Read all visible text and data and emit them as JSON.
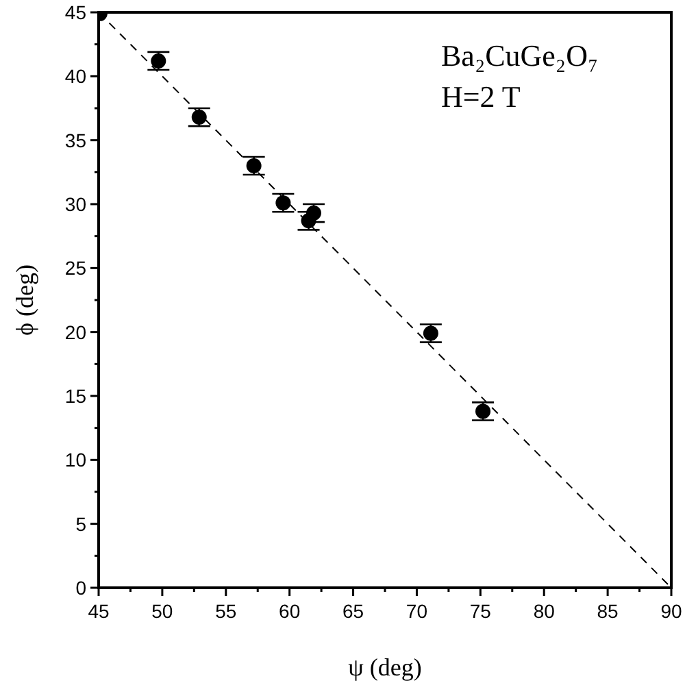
{
  "chart_data": {
    "type": "scatter",
    "xlabel": "ψ (deg)",
    "ylabel": "ϕ (deg)",
    "annotations": [
      "Ba₂CuGe₂O₇",
      "H=2 T"
    ],
    "xlim": [
      45,
      90
    ],
    "ylim": [
      0,
      45
    ],
    "xticks": [
      45,
      {
        "value": 47.5,
        "label": null
      },
      50,
      {
        "value": 52.5,
        "label": null
      },
      55,
      {
        "value": 57.5,
        "label": null
      },
      60,
      {
        "value": 62.5,
        "label": null
      },
      65,
      {
        "value": 67.5,
        "label": null
      },
      70,
      {
        "value": 72.5,
        "label": null
      },
      75,
      {
        "value": 77.5,
        "label": null
      },
      80,
      {
        "value": 82.5,
        "label": null
      },
      85,
      {
        "value": 87.5,
        "label": null
      },
      90
    ],
    "yticks": [
      0,
      {
        "value": 2.5,
        "label": null
      },
      5,
      {
        "value": 7.5,
        "label": null
      },
      10,
      {
        "value": 12.5,
        "label": null
      },
      15,
      {
        "value": 17.5,
        "label": null
      },
      20,
      {
        "value": 22.5,
        "label": null
      },
      25,
      {
        "value": 27.5,
        "label": null
      },
      30,
      {
        "value": 32.5,
        "label": null
      },
      35,
      {
        "value": 37.5,
        "label": null
      },
      40,
      {
        "value": 42.5,
        "label": null
      },
      45
    ],
    "grid": false,
    "series": [
      {
        "color": "#000000",
        "marker": "circle",
        "x": [
          45.1,
          49.7,
          52.9,
          57.2,
          59.5,
          61.5,
          61.9,
          71.1,
          75.2
        ],
        "values": [
          44.9,
          41.2,
          36.8,
          33.0,
          30.1,
          28.7,
          29.3,
          19.9,
          13.8
        ],
        "errors": [
          null,
          0.7,
          0.7,
          0.7,
          0.7,
          0.7,
          0.7,
          0.7,
          0.7
        ]
      },
      {
        "type": "line",
        "color": "#000000",
        "line_style": "dashed",
        "x": [
          45,
          90
        ],
        "values": [
          45,
          0
        ]
      }
    ]
  }
}
